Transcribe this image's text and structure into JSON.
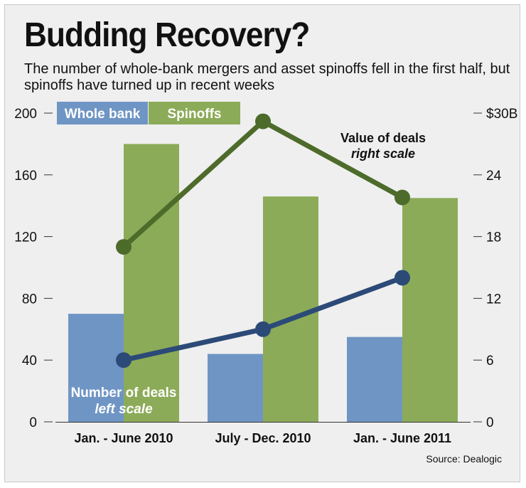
{
  "title": "Budding Recovery?",
  "subtitle": "The number of whole-bank mergers and asset spinoffs fell in the first half, but spinoffs have turned up in recent weeks",
  "source": "Source: Dealogic",
  "colors": {
    "whole_bank": "#6f95c4",
    "spinoffs": "#8cab58",
    "value_line": "#4d6b2a",
    "count_line": "#2c4a77",
    "background": "#efefef"
  },
  "chart_data": {
    "type": "bar",
    "categories": [
      "Jan. - June 2010",
      "July - Dec. 2010",
      "Jan. - June 2011"
    ],
    "series": [
      {
        "name": "Whole bank",
        "values": [
          70,
          44,
          55
        ],
        "axis": "left",
        "kind": "bar"
      },
      {
        "name": "Spinoffs",
        "values": [
          180,
          146,
          145
        ],
        "axis": "left",
        "kind": "bar"
      },
      {
        "name": "",
        "values": [
          6,
          9,
          14
        ],
        "axis": "right",
        "kind": "line"
      },
      {
        "name": "",
        "values": [
          17,
          29.2,
          21.8
        ],
        "axis": "right",
        "kind": "line"
      }
    ],
    "left_axis": {
      "ylim": [
        0,
        200
      ],
      "ticks": [
        "0",
        "40",
        "80",
        "120",
        "160",
        "200"
      ],
      "tick_values": [
        0,
        40,
        80,
        120,
        160,
        200
      ]
    },
    "right_axis": {
      "ylim": [
        0,
        30
      ],
      "ticks": [
        "0",
        "6",
        "12",
        "18",
        "24",
        "$30B"
      ],
      "tick_values": [
        0,
        6,
        12,
        18,
        24,
        30
      ]
    },
    "legend": {
      "placement": "top-left",
      "labels": [
        "Whole bank",
        "Spinoffs"
      ]
    },
    "annotations": {
      "value_line": {
        "line1": "Value of deals",
        "line2": "right scale"
      },
      "count_line": {
        "line1": "Number of deals",
        "line2": "left scale"
      }
    },
    "grid": false
  }
}
